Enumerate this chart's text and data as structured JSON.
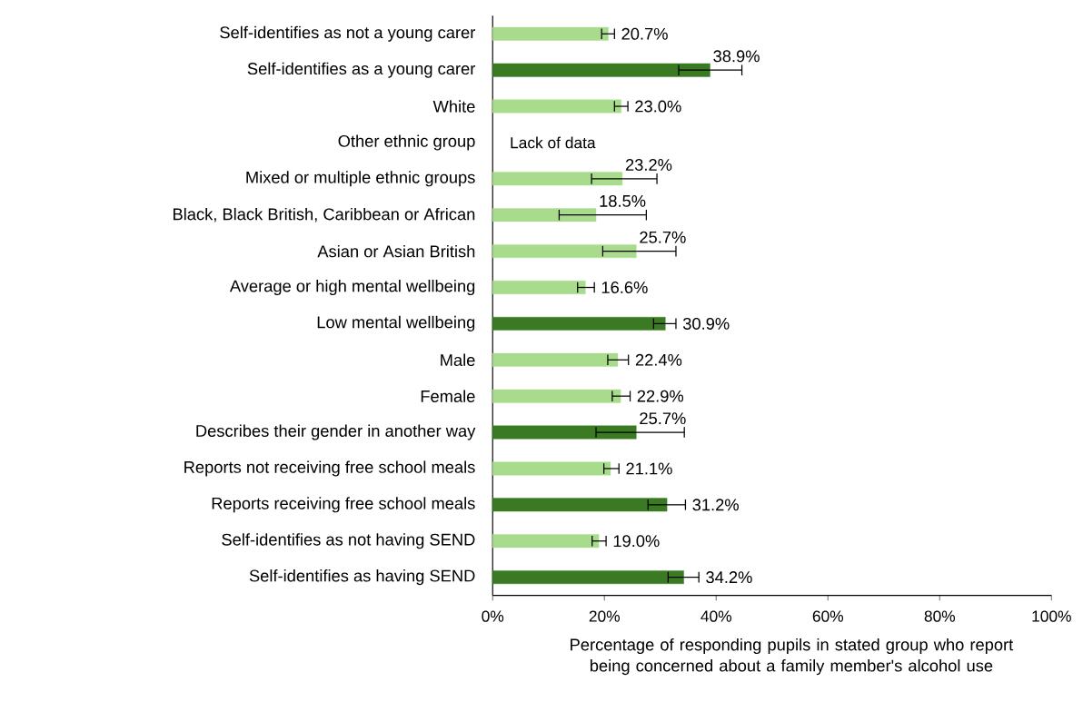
{
  "chart_data": {
    "type": "bar",
    "orientation": "horizontal",
    "xlabel": "Percentage of responding pupils in stated group who report being concerned about a family member's alcohol use",
    "categories": [
      "Self-identifies as not a young carer",
      "Self-identifies as a young carer",
      "White",
      "Other ethnic group",
      "Mixed or multiple ethnic groups",
      "Black, Black British, Caribbean or African",
      "Asian or Asian British",
      "Average or high mental wellbeing",
      "Low mental wellbeing",
      "Male",
      "Female",
      "Describes their gender in another way",
      "Reports not receiving free school meals",
      "Reports receiving free school meals",
      "Self-identifies as not having SEND",
      "Self-identifies as having SEND"
    ],
    "values": [
      20.7,
      38.9,
      23.0,
      null,
      23.2,
      18.5,
      25.7,
      16.6,
      30.9,
      22.4,
      22.9,
      25.7,
      21.1,
      31.2,
      19.0,
      34.2
    ],
    "value_labels": [
      "20.7%",
      "38.9%",
      "23.0%",
      null,
      "23.2%",
      "18.5%",
      "25.7%",
      "16.6%",
      "30.9%",
      "22.4%",
      "22.9%",
      "25.7%",
      "21.1%",
      "31.2%",
      "19.0%",
      "34.2%"
    ],
    "errors": [
      [
        19.5,
        21.8
      ],
      [
        33.3,
        44.6
      ],
      [
        21.8,
        24.2
      ],
      null,
      [
        17.7,
        29.4
      ],
      [
        11.9,
        27.5
      ],
      [
        19.7,
        32.8
      ],
      [
        15.2,
        18.2
      ],
      [
        28.8,
        32.8
      ],
      [
        20.6,
        24.3
      ],
      [
        21.4,
        24.6
      ],
      [
        18.5,
        34.3
      ],
      [
        19.9,
        22.6
      ],
      [
        27.8,
        34.5
      ],
      [
        17.8,
        20.3
      ],
      [
        31.4,
        36.9
      ]
    ],
    "colors": [
      "#a8dc8c",
      "#3a7a22",
      "#a8dc8c",
      "#a8dc8c",
      "#a8dc8c",
      "#a8dc8c",
      "#a8dc8c",
      "#a8dc8c",
      "#3a7a22",
      "#a8dc8c",
      "#a8dc8c",
      "#3a7a22",
      "#a8dc8c",
      "#3a7a22",
      "#a8dc8c",
      "#3a7a22"
    ],
    "annotations": [
      "Lack of data"
    ],
    "xlim": [
      0,
      100
    ],
    "xticks": [
      {
        "value": 0,
        "label": "0%"
      },
      {
        "value": 20,
        "label": "20%"
      },
      {
        "value": 40,
        "label": "40%"
      },
      {
        "value": 60,
        "label": "60%"
      },
      {
        "value": 80,
        "label": "80%"
      },
      {
        "value": 100,
        "label": "100%"
      }
    ]
  }
}
